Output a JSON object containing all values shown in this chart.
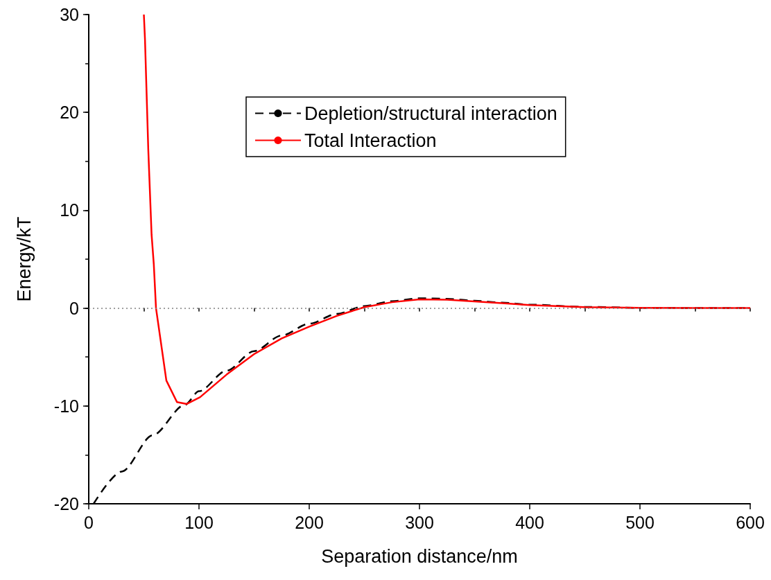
{
  "chart_data": {
    "type": "line",
    "xlabel": "Separation distance/nm",
    "ylabel": "Energy/kT",
    "xlim": [
      0,
      600
    ],
    "xticks": [
      0,
      100,
      200,
      300,
      400,
      500,
      600
    ],
    "ylim": [
      -20,
      30
    ],
    "yticks": [
      -20,
      -10,
      0,
      10,
      20,
      30
    ],
    "grid": false,
    "legend": "top",
    "marker": "none",
    "ref_lines": [
      {
        "axis": "y",
        "value": 0,
        "color": "#808080",
        "line_style": "dotted"
      }
    ],
    "series": [
      {
        "name": "Depletion/structural interaction",
        "color": "#000000",
        "line_style": "dashed",
        "x": [
          4.4,
          30,
          58,
          87,
          100,
          125,
          150,
          175,
          200,
          225,
          250,
          275,
          300,
          325,
          350,
          375,
          400,
          450,
          500,
          550,
          600
        ],
        "values": [
          -20,
          -16.7,
          -13.0,
          -9.9,
          -8.5,
          -6.4,
          -4.4,
          -2.8,
          -1.6,
          -0.6,
          0.2,
          0.7,
          1.0,
          0.95,
          0.75,
          0.55,
          0.35,
          0.12,
          0.03,
          0.01,
          0
        ]
      },
      {
        "name": "Total Interaction",
        "color": "#ff0000",
        "line_style": "solid",
        "x": [
          50,
          51,
          54,
          57,
          59,
          61,
          70.4,
          80,
          89,
          101,
          125,
          150,
          175,
          200,
          225,
          250,
          275,
          300,
          325,
          350,
          375,
          400,
          450,
          500,
          550,
          600
        ],
        "values": [
          30,
          27.5,
          16.2,
          7.5,
          4.5,
          0,
          -7.4,
          -9.6,
          -9.8,
          -9.1,
          -6.8,
          -4.7,
          -3.1,
          -1.9,
          -0.8,
          0.1,
          0.6,
          0.9,
          0.85,
          0.68,
          0.5,
          0.3,
          0.1,
          0.03,
          0.01,
          0
        ]
      }
    ]
  }
}
